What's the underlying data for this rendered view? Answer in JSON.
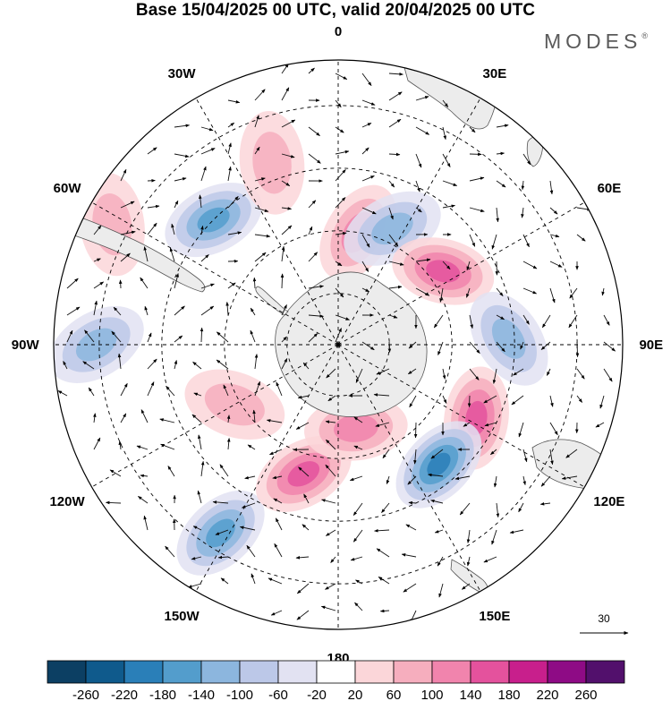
{
  "title": "Base 15/04/2025 00 UTC, valid 20/04/2025 00 UTC",
  "brand": {
    "name": "MODES",
    "mark": "®"
  },
  "map": {
    "projection": "south-polar-stereographic",
    "longitude_labels": [
      {
        "text": "0",
        "lon": 0
      },
      {
        "text": "30E",
        "lon": 30
      },
      {
        "text": "60E",
        "lon": 60
      },
      {
        "text": "90E",
        "lon": 90
      },
      {
        "text": "120E",
        "lon": 120
      },
      {
        "text": "150E",
        "lon": 150
      },
      {
        "text": "180",
        "lon": 180
      },
      {
        "text": "150W",
        "lon": -150
      },
      {
        "text": "120W",
        "lon": -120
      },
      {
        "text": "90W",
        "lon": -90
      },
      {
        "text": "60W",
        "lon": -60
      },
      {
        "text": "30W",
        "lon": -30
      }
    ],
    "vector_scale": {
      "value": "30"
    },
    "anomaly_centers": [
      {
        "lon": -45,
        "colat": 0.62,
        "value": -150
      },
      {
        "lon": -90,
        "colat": 0.85,
        "value": -110
      },
      {
        "lon": -148,
        "colat": 0.78,
        "value": -170
      },
      {
        "lon": -165,
        "colat": 0.47,
        "value": 140
      },
      {
        "lon": -120,
        "colat": 0.42,
        "value": 70
      },
      {
        "lon": 10,
        "colat": 0.4,
        "value": 120
      },
      {
        "lon": 25,
        "colat": 0.45,
        "value": -130
      },
      {
        "lon": 55,
        "colat": 0.45,
        "value": 140
      },
      {
        "lon": 88,
        "colat": 0.6,
        "value": -130
      },
      {
        "lon": 118,
        "colat": 0.55,
        "value": 150
      },
      {
        "lon": 140,
        "colat": 0.55,
        "value": -190
      },
      {
        "lon": 168,
        "colat": 0.3,
        "value": 100
      },
      {
        "lon": -20,
        "colat": 0.68,
        "value": 60
      },
      {
        "lon": -62,
        "colat": 0.9,
        "value": 70
      }
    ]
  },
  "colorbar": {
    "colors": [
      "#0c3f63",
      "#0f5a8c",
      "#2a7fb8",
      "#539dcc",
      "#8cb6de",
      "#bcc8e8",
      "#e2e2f2",
      "#ffffff",
      "#fbd6d9",
      "#f6aebe",
      "#f184ad",
      "#e4529d",
      "#c81f8c",
      "#8e0b85",
      "#52106c"
    ],
    "labels": [
      "-260",
      "-220",
      "-180",
      "-140",
      "-100",
      "-60",
      "-20",
      "20",
      "60",
      "100",
      "140",
      "180",
      "220",
      "260"
    ]
  }
}
